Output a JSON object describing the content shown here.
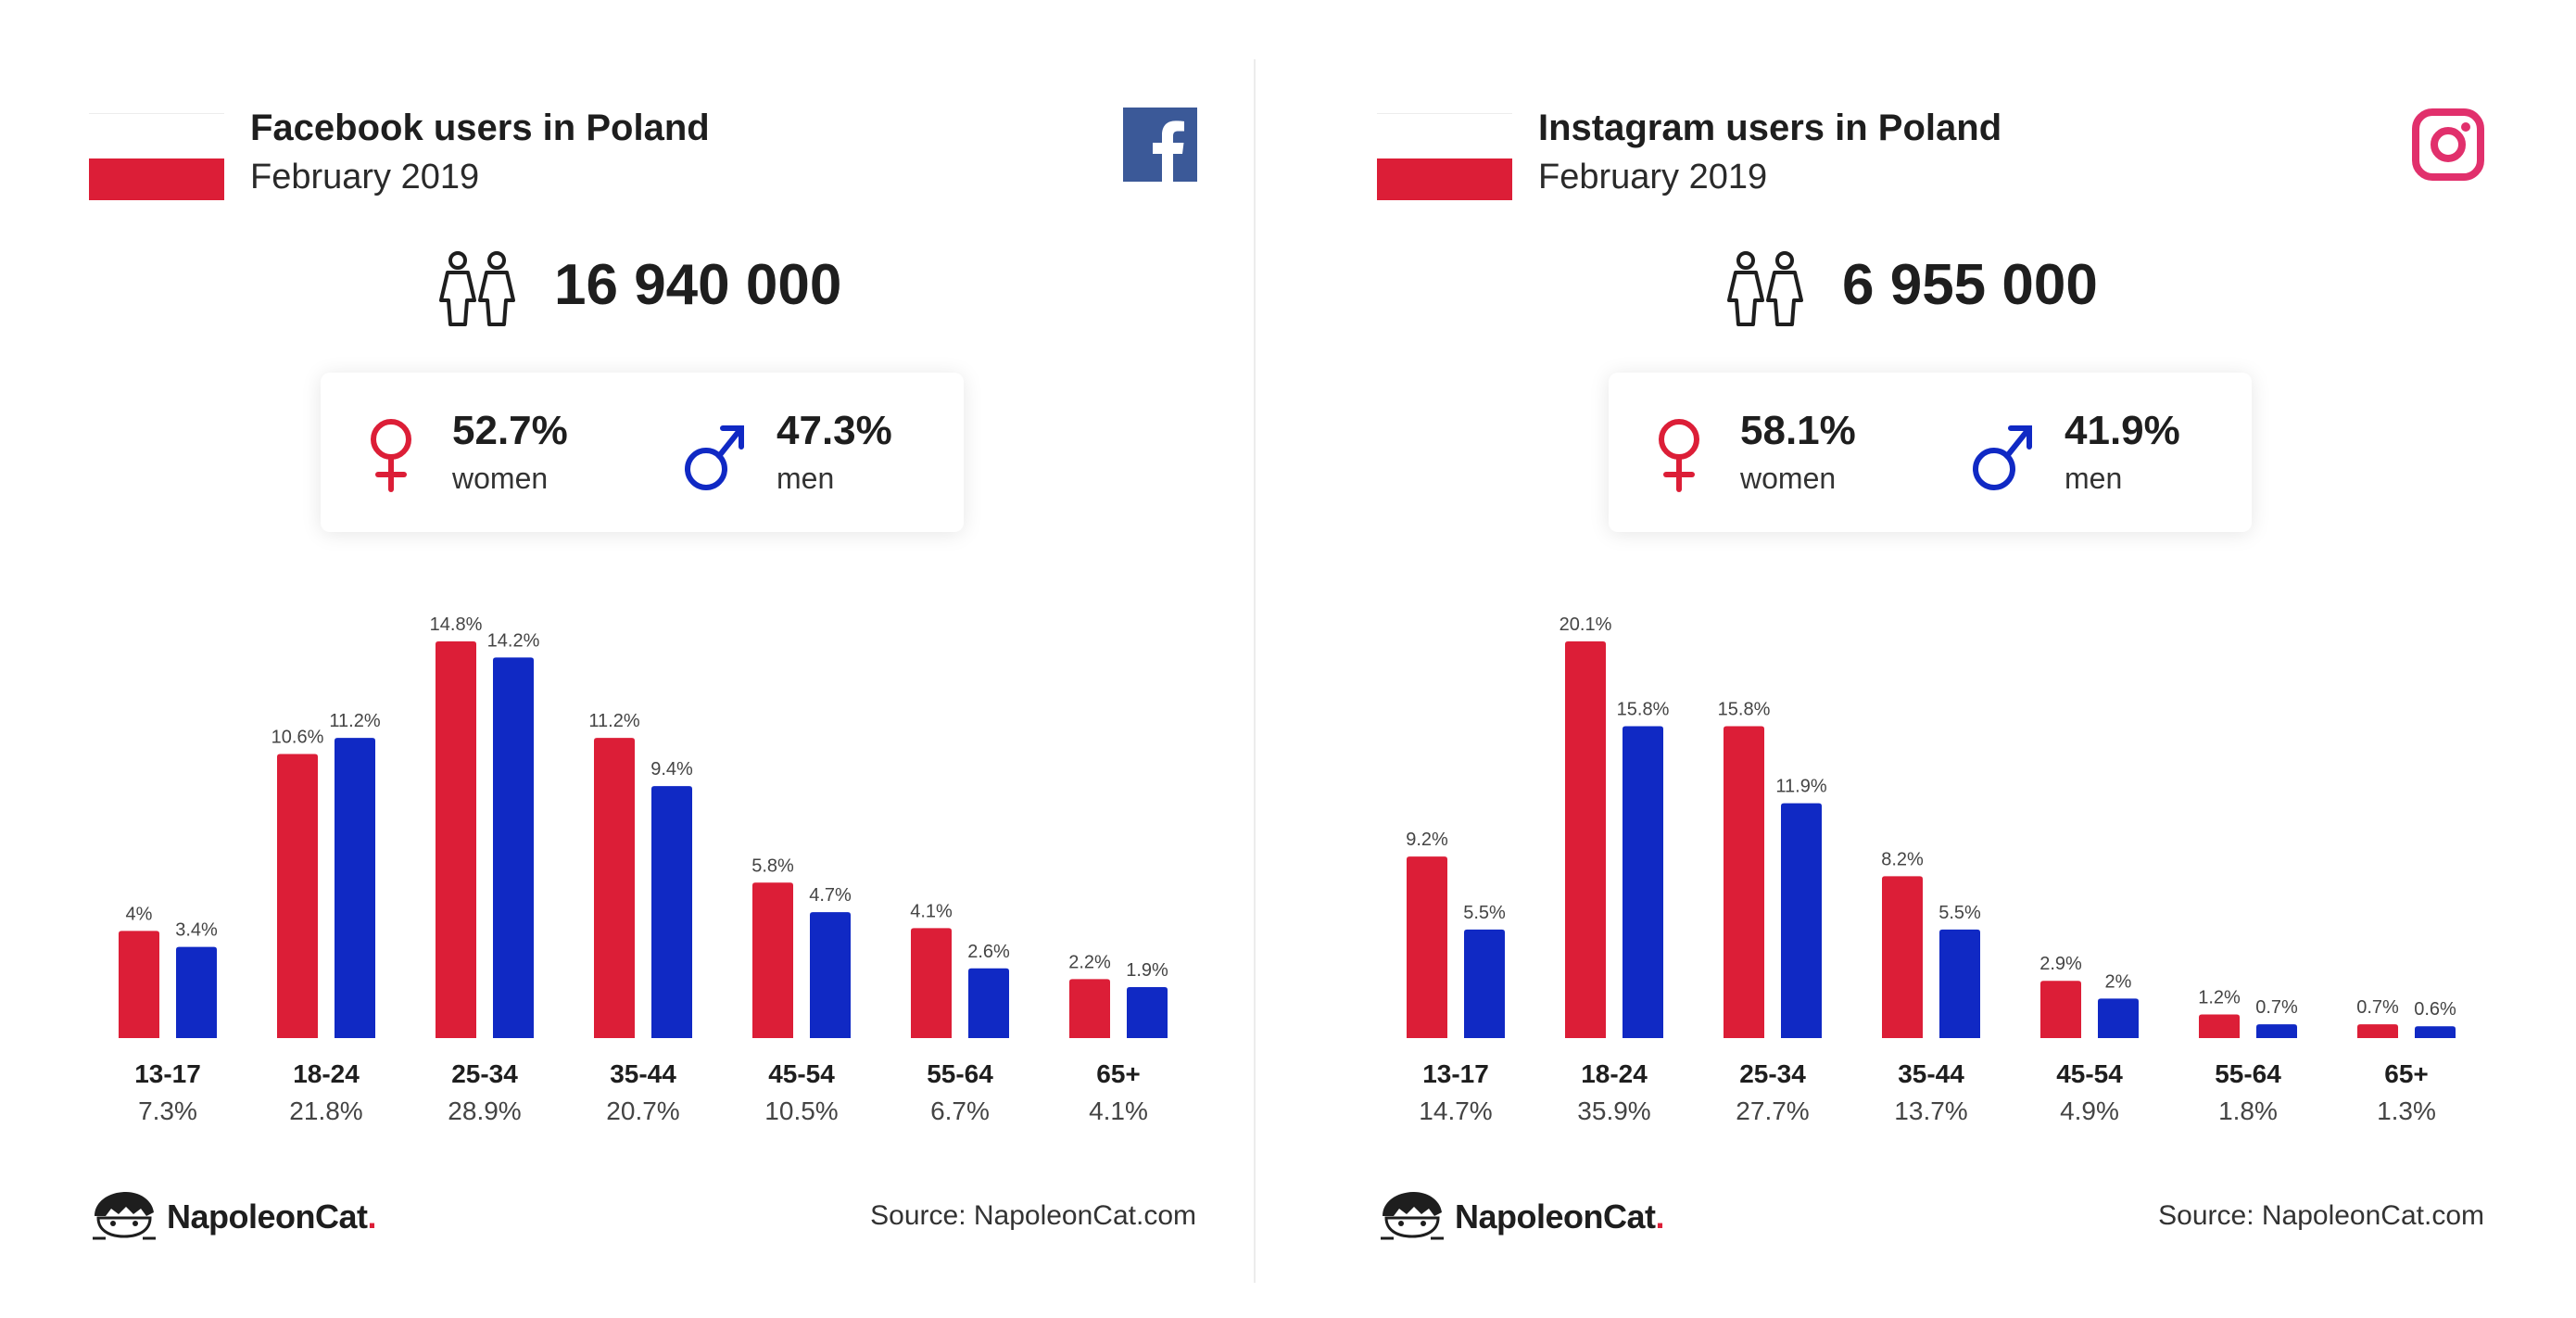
{
  "panels": [
    {
      "title": "Facebook users in Poland",
      "subtitle": "February 2019",
      "brand_icon": "facebook-icon",
      "total_users": "16 940 000",
      "women_pct": "52.7%",
      "women_label": "women",
      "men_pct": "47.3%",
      "men_label": "men",
      "source": "Source: NapoleonCat.com",
      "logo": {
        "name": "NapoleonCat",
        "dot": "."
      }
    },
    {
      "title": "Instagram users in Poland",
      "subtitle": "February 2019",
      "brand_icon": "instagram-icon",
      "total_users": "6 955 000",
      "women_pct": "58.1%",
      "women_label": "women",
      "men_pct": "41.9%",
      "men_label": "men",
      "source": "Source: NapoleonCat.com",
      "logo": {
        "name": "NapoleonCat",
        "dot": "."
      }
    }
  ],
  "colors": {
    "women": "#dc1e37",
    "men": "#1029c4",
    "facebook": "#3b5998",
    "instagram": "#e1306c",
    "flag_red": "#dc1e37"
  },
  "chart_data": [
    {
      "type": "bar",
      "categories": [
        "13-17",
        "18-24",
        "25-34",
        "35-44",
        "45-54",
        "55-64",
        "65+"
      ],
      "category_totals": [
        "7.3%",
        "21.8%",
        "28.9%",
        "20.7%",
        "10.5%",
        "6.7%",
        "4.1%"
      ],
      "series": [
        {
          "name": "women",
          "values": [
            4,
            10.6,
            14.8,
            11.2,
            5.8,
            4.1,
            2.2
          ],
          "labels": [
            "4%",
            "10.6%",
            "14.8%",
            "11.2%",
            "5.8%",
            "4.1%",
            "2.2%"
          ],
          "color": "#dc1e37"
        },
        {
          "name": "men",
          "values": [
            3.4,
            11.2,
            14.2,
            9.4,
            4.7,
            2.6,
            1.9
          ],
          "labels": [
            "3.4%",
            "11.2%",
            "14.2%",
            "9.4%",
            "4.7%",
            "2.6%",
            "1.9%"
          ],
          "color": "#1029c4"
        }
      ],
      "ylim": [
        0,
        14.8
      ]
    },
    {
      "type": "bar",
      "categories": [
        "13-17",
        "18-24",
        "25-34",
        "35-44",
        "45-54",
        "55-64",
        "65+"
      ],
      "category_totals": [
        "14.7%",
        "35.9%",
        "27.7%",
        "13.7%",
        "4.9%",
        "1.8%",
        "1.3%"
      ],
      "series": [
        {
          "name": "women",
          "values": [
            9.2,
            20.1,
            15.8,
            8.2,
            2.9,
            1.2,
            0.7
          ],
          "labels": [
            "9.2%",
            "20.1%",
            "15.8%",
            "8.2%",
            "2.9%",
            "1.2%",
            "0.7%"
          ],
          "color": "#dc1e37"
        },
        {
          "name": "men",
          "values": [
            5.5,
            15.8,
            11.9,
            5.5,
            2,
            0.7,
            0.6
          ],
          "labels": [
            "5.5%",
            "15.8%",
            "11.9%",
            "5.5%",
            "2%",
            "0.7%",
            "0.6%"
          ],
          "color": "#1029c4"
        }
      ],
      "ylim": [
        0,
        20.1
      ]
    }
  ]
}
